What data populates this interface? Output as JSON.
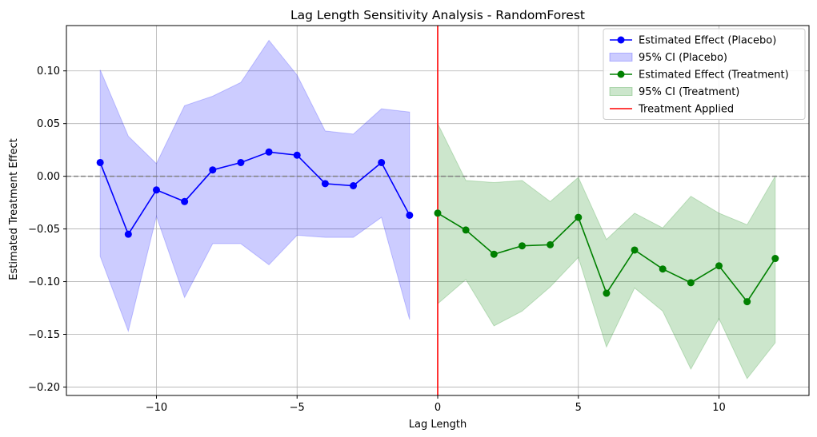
{
  "chart_data": {
    "type": "line",
    "title": "Lag Length Sensitivity Analysis - RandomForest",
    "xlabel": "Lag Length",
    "ylabel": "Estimated Treatment Effect",
    "xlim": [
      -13.2,
      13.2
    ],
    "ylim": [
      -0.208,
      0.143
    ],
    "xticks": [
      -10,
      -5,
      0,
      5,
      10
    ],
    "xtick_labels": [
      "−10",
      "−5",
      "0",
      "5",
      "10"
    ],
    "yticks": [
      -0.2,
      -0.15,
      -0.1,
      -0.05,
      0.0,
      0.05,
      0.1
    ],
    "ytick_labels": [
      "−0.20",
      "−0.15",
      "−0.10",
      "−0.05",
      "0.00",
      "0.05",
      "0.10"
    ],
    "grid": true,
    "legend_position": "top-right",
    "reference_lines": {
      "horizontal_zero": {
        "y": 0,
        "color": "#808080",
        "style": "dashed"
      },
      "treatment_vertical": {
        "x": 0,
        "color": "#ff0000",
        "label": "Treatment Applied"
      }
    },
    "series": [
      {
        "name": "Estimated Effect (Placebo)",
        "color": "#0000ff",
        "x": [
          -12,
          -11,
          -10,
          -9,
          -8,
          -7,
          -6,
          -5,
          -4,
          -3,
          -2,
          -1
        ],
        "y": [
          0.013,
          -0.055,
          -0.013,
          -0.024,
          0.006,
          0.013,
          0.023,
          0.02,
          -0.007,
          -0.009,
          0.013,
          -0.037
        ],
        "ci_name": "95% CI (Placebo)",
        "ci_color": "#0000ff",
        "ci_lower": [
          -0.076,
          -0.147,
          -0.038,
          -0.115,
          -0.064,
          -0.064,
          -0.084,
          -0.056,
          -0.058,
          -0.058,
          -0.039,
          -0.136
        ],
        "ci_upper": [
          0.101,
          0.038,
          0.012,
          0.067,
          0.076,
          0.089,
          0.129,
          0.096,
          0.043,
          0.04,
          0.064,
          0.061
        ]
      },
      {
        "name": "Estimated Effect (Treatment)",
        "color": "#008000",
        "x": [
          0,
          1,
          2,
          3,
          4,
          5,
          6,
          7,
          8,
          9,
          10,
          11,
          12
        ],
        "y": [
          -0.035,
          -0.051,
          -0.074,
          -0.066,
          -0.065,
          -0.039,
          -0.111,
          -0.07,
          -0.088,
          -0.101,
          -0.085,
          -0.119,
          -0.078
        ],
        "ci_name": "95% CI (Treatment)",
        "ci_color": "#008000",
        "ci_lower": [
          -0.121,
          -0.098,
          -0.142,
          -0.128,
          -0.105,
          -0.077,
          -0.162,
          -0.106,
          -0.128,
          -0.183,
          -0.135,
          -0.192,
          -0.158
        ],
        "ci_upper": [
          0.05,
          -0.004,
          -0.006,
          -0.004,
          -0.024,
          -0.001,
          -0.06,
          -0.035,
          -0.049,
          -0.019,
          -0.035,
          -0.046,
          0.0
        ]
      }
    ],
    "legend": [
      {
        "label": "Estimated Effect (Placebo)",
        "kind": "line-marker",
        "color": "#0000ff"
      },
      {
        "label": "95% CI (Placebo)",
        "kind": "patch",
        "color": "#0000ff"
      },
      {
        "label": "Estimated Effect (Treatment)",
        "kind": "line-marker",
        "color": "#008000"
      },
      {
        "label": "95% CI (Treatment)",
        "kind": "patch",
        "color": "#008000"
      },
      {
        "label": "Treatment Applied",
        "kind": "line",
        "color": "#ff0000"
      }
    ]
  }
}
